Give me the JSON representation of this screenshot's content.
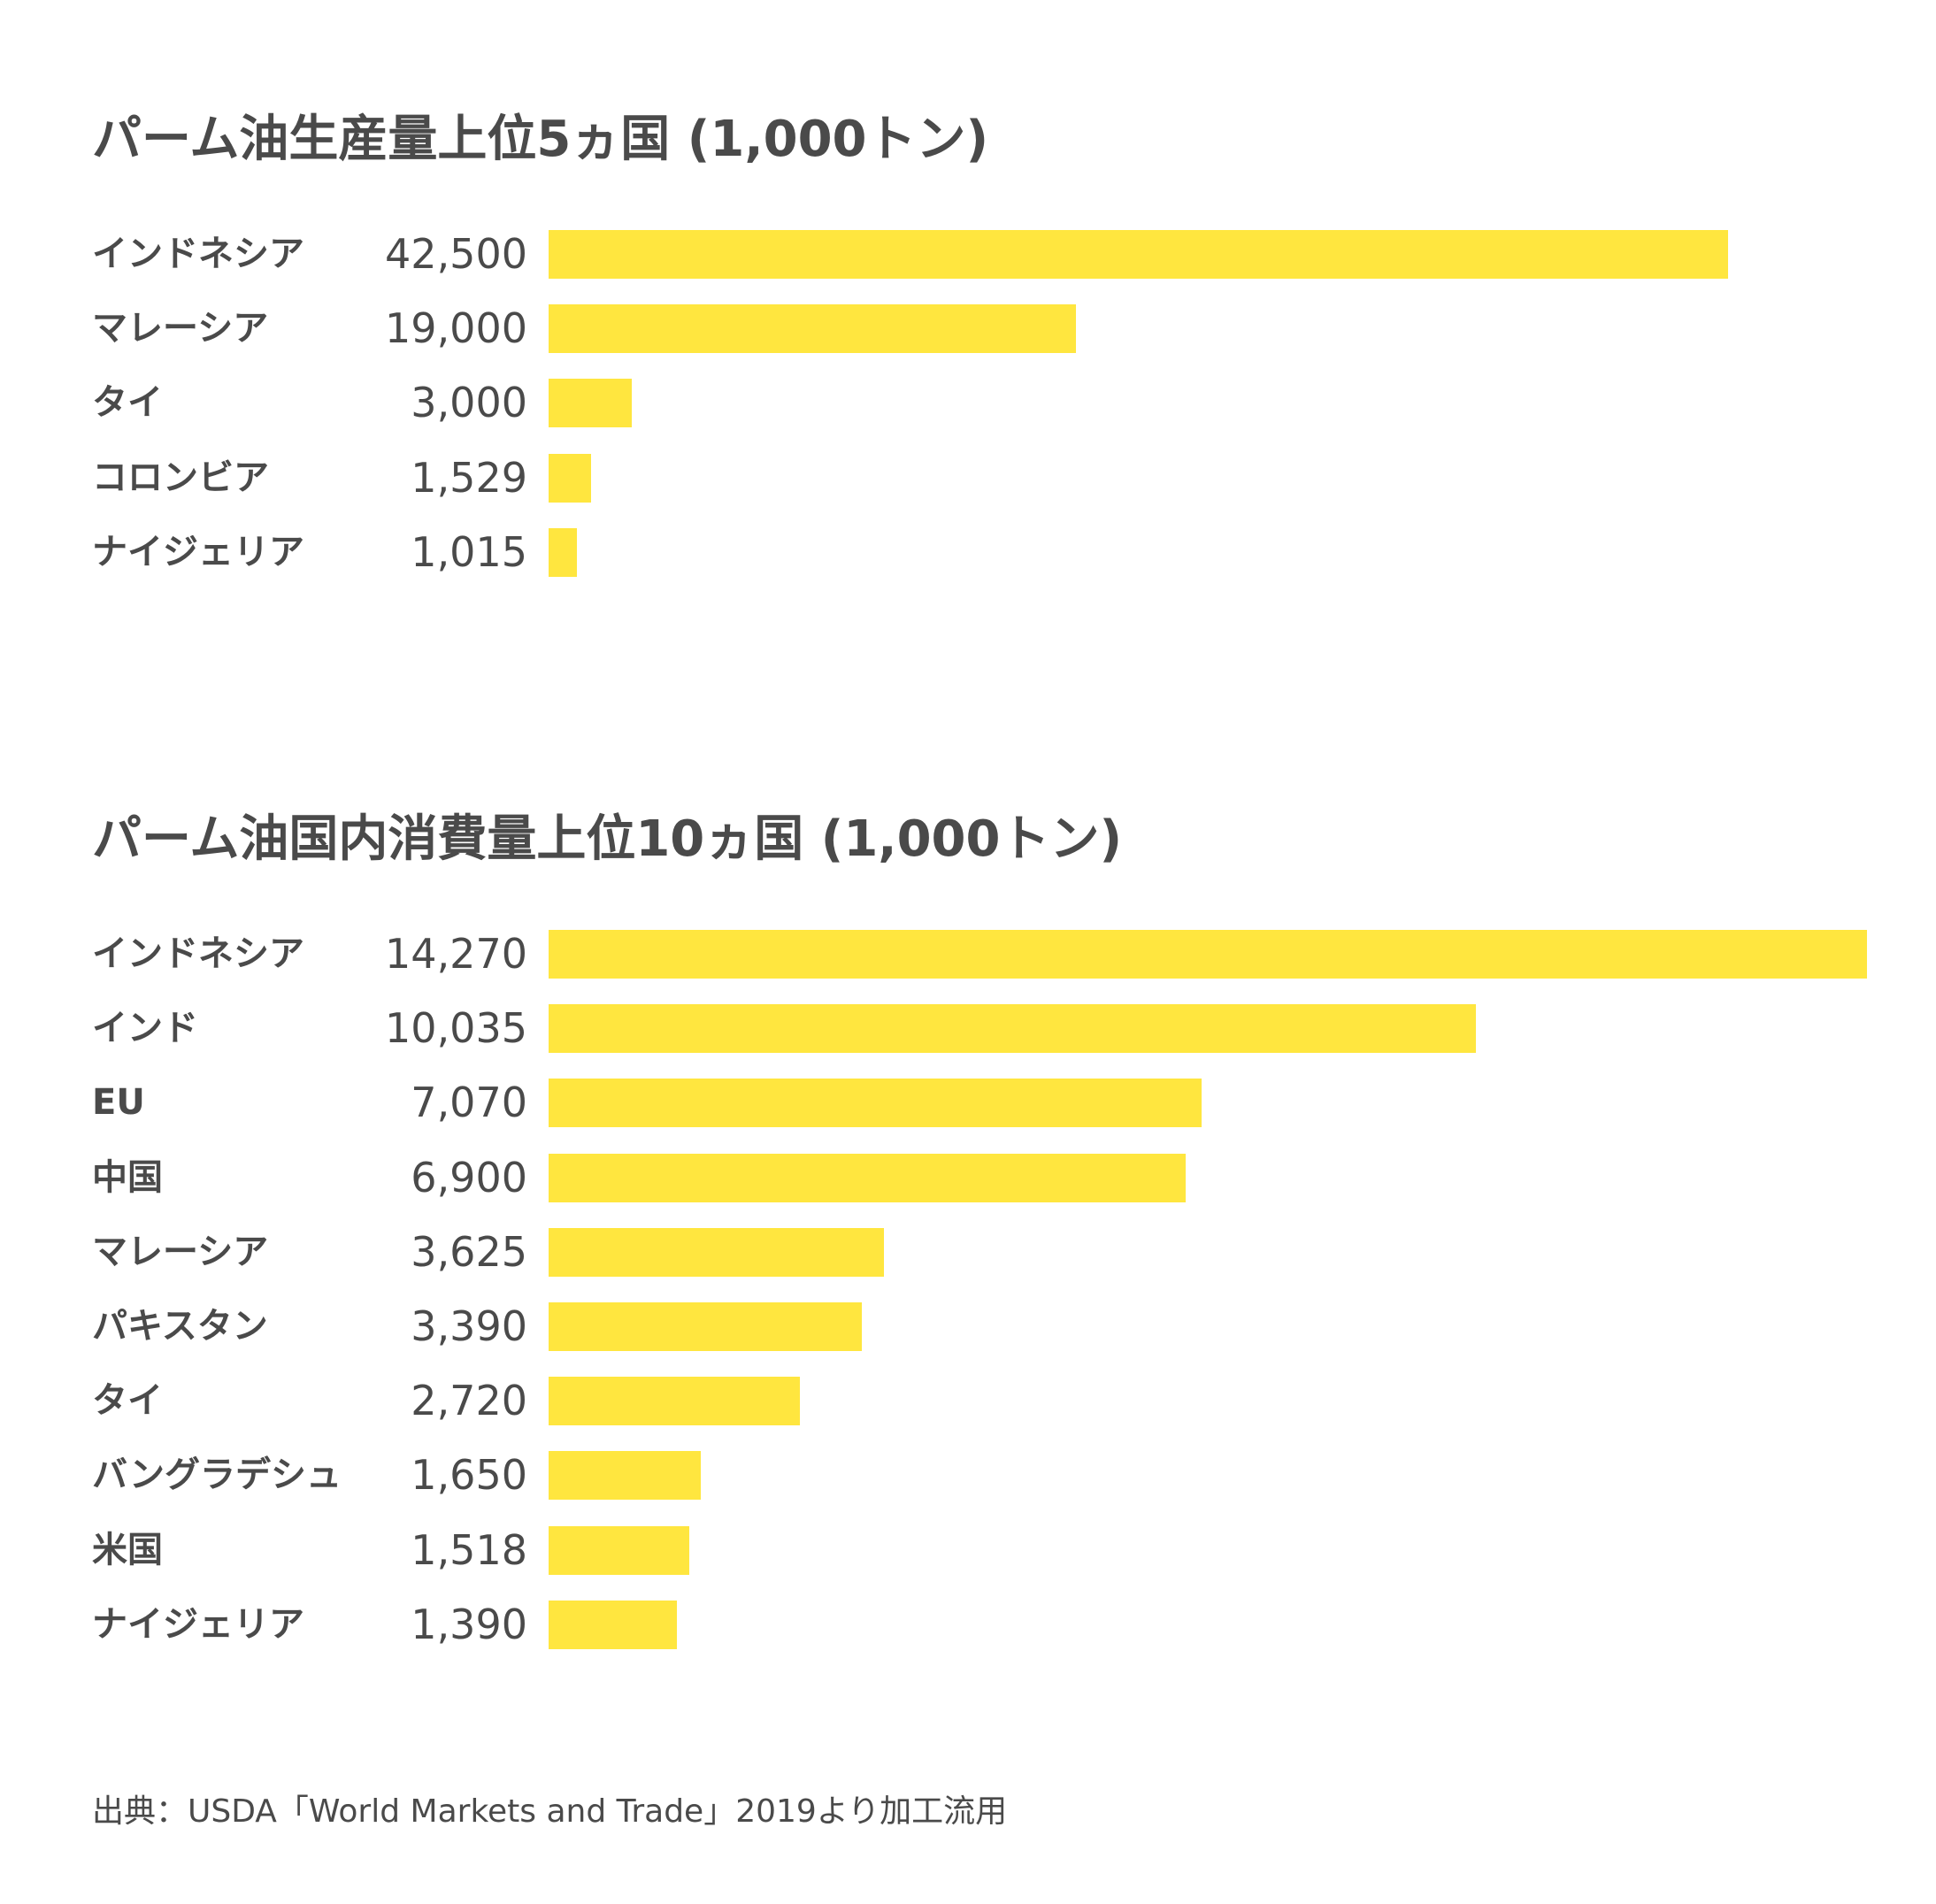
{
  "chart_data": [
    {
      "type": "bar",
      "orientation": "horizontal",
      "title": "パーム油生産量上位5ヵ国 (1,000トン)",
      "categories": [
        "インドネシア",
        "マレーシア",
        "タイ",
        "コロンビア",
        "ナイジェリア"
      ],
      "values": [
        42500,
        19000,
        3000,
        1529,
        1015
      ],
      "value_labels": [
        "42,500",
        "19,000",
        "3,000",
        "1,529",
        "1,015"
      ],
      "bar_color": "#ffe63f",
      "xlim": [
        0,
        47500
      ]
    },
    {
      "type": "bar",
      "orientation": "horizontal",
      "title": "パーム油国内消費量上位10ヵ国 (1,000トン)",
      "categories": [
        "インドネシア",
        "インド",
        "EU",
        "中国",
        "マレーシア",
        "パキスタン",
        "タイ",
        "バングラデシュ",
        "米国",
        "ナイジェリア"
      ],
      "values": [
        14270,
        10035,
        7070,
        6900,
        3625,
        3390,
        2720,
        1650,
        1518,
        1390
      ],
      "value_labels": [
        "14,270",
        "10,035",
        "7,070",
        "6,900",
        "3,625",
        "3,390",
        "2,720",
        "1,650",
        "1,518",
        "1,390"
      ],
      "bar_color": "#ffe63f",
      "xlim": [
        0,
        14270
      ]
    }
  ],
  "source": "出典：USDA「World Markets and Trade」2019より加工流用"
}
